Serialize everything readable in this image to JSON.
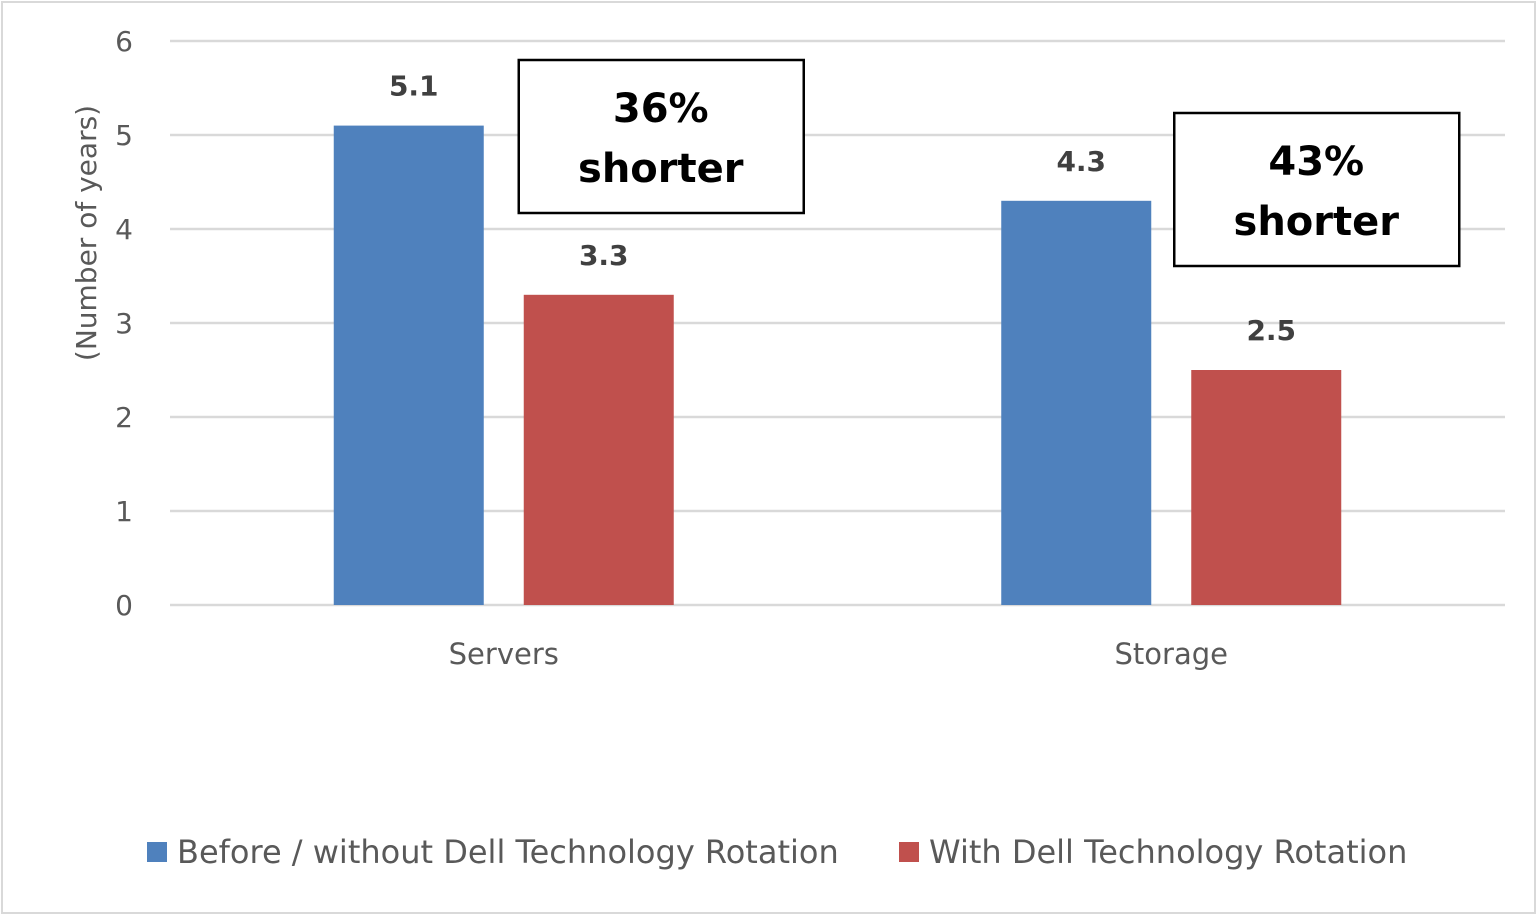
{
  "chart_data": {
    "type": "bar",
    "title": "",
    "xlabel": "",
    "ylabel": "(Number of years)",
    "ylim": [
      0,
      6
    ],
    "yticks": [
      0,
      1,
      2,
      3,
      4,
      5,
      6
    ],
    "grid": true,
    "categories": [
      "Servers",
      "Storage"
    ],
    "series": [
      {
        "name": "Before / without Dell Technology Rotation",
        "values": [
          5.1,
          4.3
        ],
        "color": "#4F81BD"
      },
      {
        "name": "With Dell Technology Rotation",
        "values": [
          3.3,
          2.5
        ],
        "color": "#C0504D"
      }
    ],
    "data_labels": [
      [
        "5.1",
        "4.3"
      ],
      [
        "3.3",
        "2.5"
      ]
    ],
    "annotations": [
      {
        "category": "Servers",
        "lines": [
          "36%",
          "shorter"
        ]
      },
      {
        "category": "Storage",
        "lines": [
          "43%",
          "shorter"
        ]
      }
    ],
    "legend_position": "bottom"
  }
}
